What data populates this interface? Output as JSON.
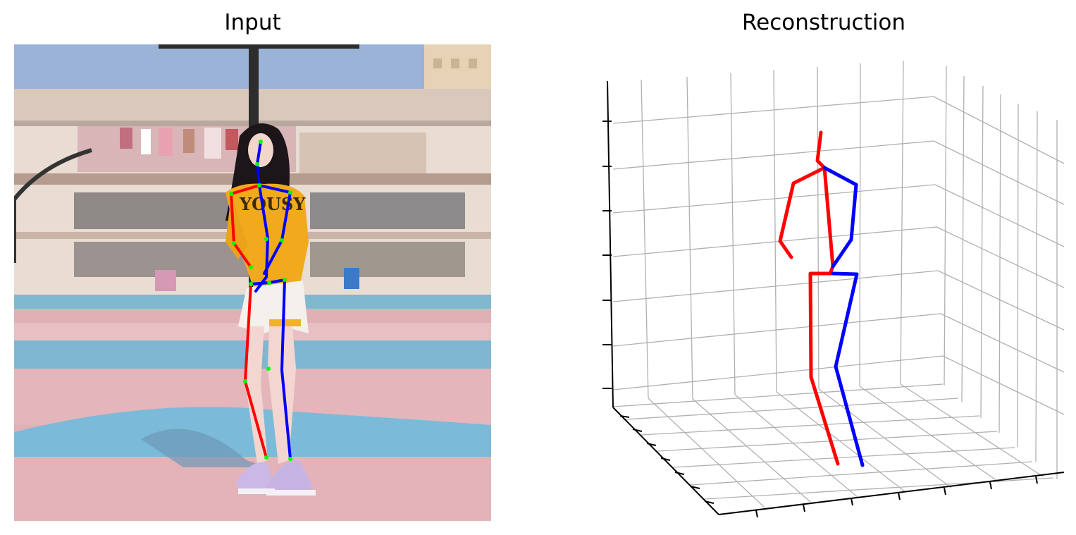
{
  "panels": {
    "input": {
      "title": "Input"
    },
    "reconstruction": {
      "title": "Reconstruction"
    }
  },
  "colors": {
    "left_limbs": "#ff0000",
    "right_limbs": "#0000ff",
    "keypoints": "#00ff00",
    "grid": "#b0b0b0",
    "axis": "#000000"
  },
  "scene": {
    "sky": "#9bb3d6",
    "court_pink": "#e0b0b5",
    "court_blue": "#82bcd8",
    "top": "#f1aa1c",
    "shorts": "#f4f0ec",
    "shoes": "#cbb8e6"
  }
}
